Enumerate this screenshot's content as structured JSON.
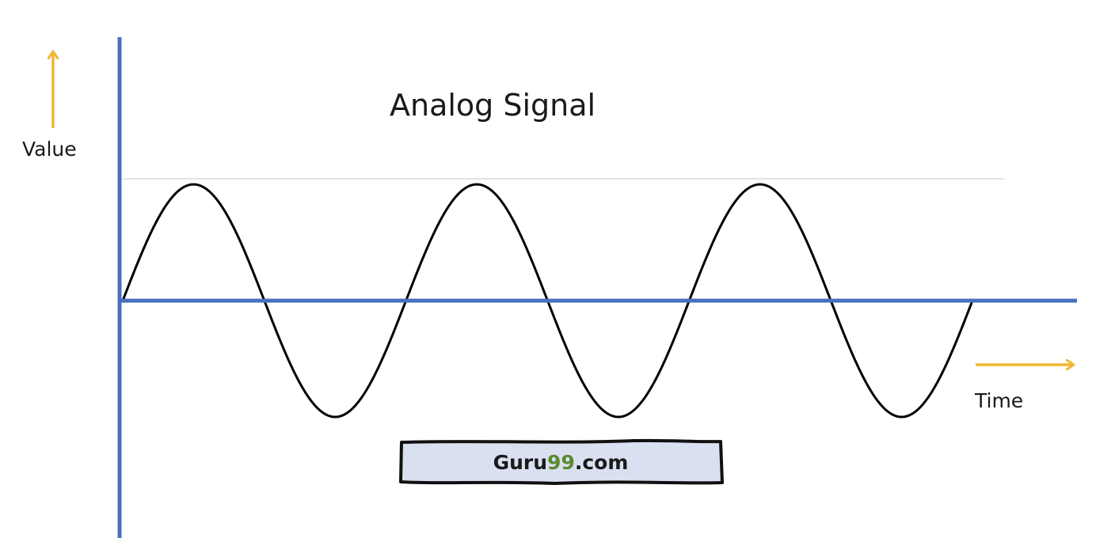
{
  "diagram": {
    "title": "Analog Signal",
    "y_axis_label": "Value",
    "x_axis_label": "Time",
    "cycles": 3,
    "waveform": "sine"
  },
  "watermark": {
    "prefix": "Guru",
    "highlight": "99",
    "suffix": ".com"
  },
  "colors": {
    "axis": "#4a6fbe",
    "arrow": "#f2b632",
    "wave": "#000000",
    "reference_line": "#e3e3e3",
    "badge_fill": "#d9e0f0",
    "badge_highlight": "#5a8a2e"
  }
}
